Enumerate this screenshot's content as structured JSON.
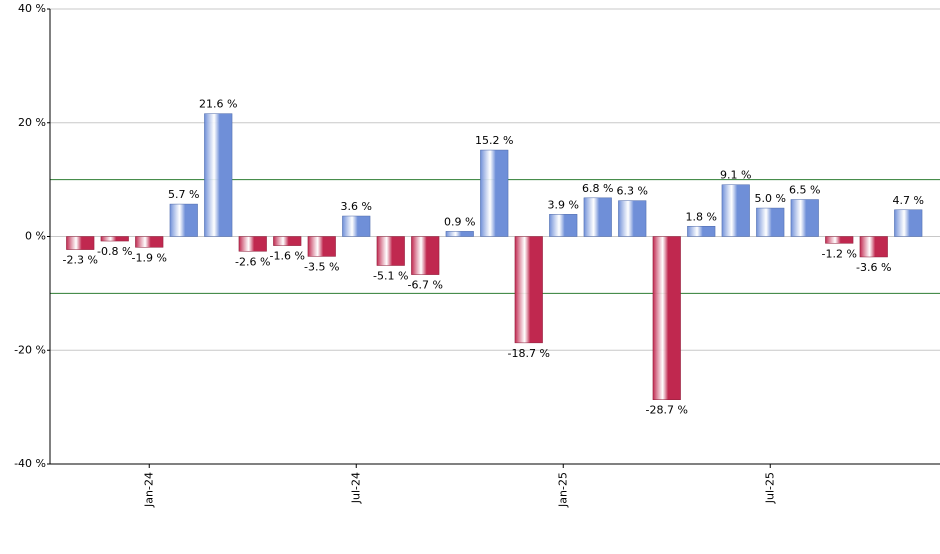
{
  "chart_data": {
    "type": "bar",
    "categories": [
      null,
      null,
      "Jan-24",
      null,
      null,
      null,
      null,
      null,
      "Jul-24",
      null,
      null,
      null,
      null,
      null,
      "Jan-25",
      null,
      null,
      null,
      null,
      null,
      "Jul-25",
      null,
      null,
      null,
      null
    ],
    "values": [
      -2.3,
      -0.8,
      -1.9,
      5.7,
      21.6,
      -2.6,
      -1.6,
      -3.5,
      3.6,
      -5.1,
      -6.7,
      0.9,
      15.2,
      -18.7,
      3.9,
      6.8,
      6.3,
      -28.7,
      1.8,
      9.1,
      5.0,
      6.5,
      -1.2,
      -3.6,
      4.7
    ],
    "value_labels": [
      "-2.3 %",
      "-0.8 %",
      "-1.9 %",
      "5.7 %",
      "21.6 %",
      "-2.6 %",
      "-1.6 %",
      "-3.5 %",
      "3.6 %",
      "-5.1 %",
      "-6.7 %",
      "0.9 %",
      "15.2 %",
      "-18.7 %",
      "3.9 %",
      "6.8 %",
      "6.3 %",
      "-28.7 %",
      "1.8 %",
      "9.1 %",
      "5.0 %",
      "6.5 %",
      "-1.2 %",
      "-3.6 %",
      "4.7 %"
    ],
    "positive_color": "#6f8fd8",
    "negative_color": "#c0284f",
    "ylim": [
      -40,
      40
    ],
    "yticks": [
      {
        "value": -40,
        "label": "-40 %"
      },
      {
        "value": -20,
        "label": "-20 %"
      },
      {
        "value": 0,
        "label": "0 %"
      },
      {
        "value": 20,
        "label": "20 %"
      },
      {
        "value": 40,
        "label": "40 %"
      }
    ],
    "reference_lines": [
      10,
      -10
    ],
    "reference_color": "#2e7d32",
    "grid": true
  }
}
